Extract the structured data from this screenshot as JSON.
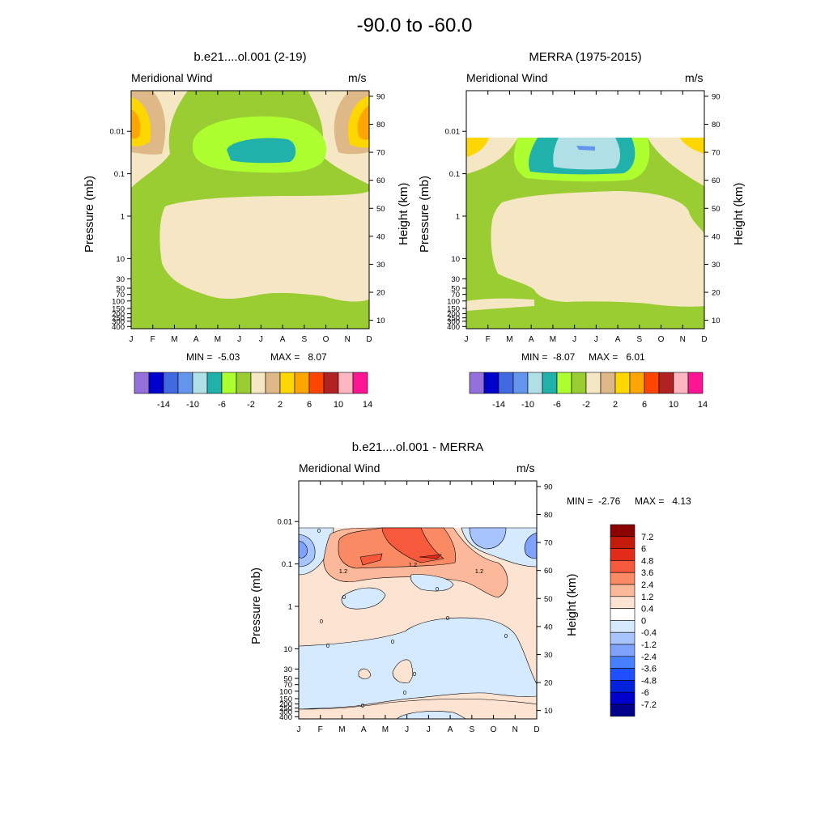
{
  "title": "-90.0 to -60.0",
  "months": [
    "J",
    "F",
    "M",
    "A",
    "M",
    "J",
    "J",
    "A",
    "S",
    "O",
    "N",
    "D"
  ],
  "pressure_ticks": [
    "0.01",
    "0.1",
    "1",
    "10",
    "30",
    "50",
    "70",
    "100",
    "150",
    "200",
    "250",
    "300",
    "400"
  ],
  "height_ticks": [
    "90",
    "80",
    "70",
    "60",
    "50",
    "40",
    "30",
    "20",
    "10"
  ],
  "colors": {
    "abs_levels": [
      "#9370db",
      "#0000cd",
      "#4169e1",
      "#6495ed",
      "#b0e0e6",
      "#20b2aa",
      "#adff2f",
      "#9acd32",
      "#f5e6c4",
      "#deb887",
      "#ffd700",
      "#ffa500",
      "#ff4500",
      "#b22222",
      "#ffb6c1",
      "#ff1493"
    ],
    "diff_levels": [
      "#00008b",
      "#0000cd",
      "#0022dd",
      "#1e50ff",
      "#4680ff",
      "#7fa2ff",
      "#a8c4ff",
      "#d6eaff",
      "#ffffff",
      "#fde3d2",
      "#fcb89a",
      "#fa8a64",
      "#f6593c",
      "#e32b19",
      "#c51b0a",
      "#8b0000"
    ]
  },
  "chart_data": [
    {
      "type": "heatmap",
      "title": "b.e21....ol.001 (2-19)",
      "left_label": "Meridional Wind",
      "right_label": "m/s",
      "xlabel": "",
      "ylabel": "Pressure (mb)",
      "ylabel_right": "Height (km)",
      "min_label": "MIN =  -5.03",
      "max_label": "MAX =   8.07",
      "min": -5.03,
      "max": 8.07,
      "colorbar_labels": [
        "-14",
        "-10",
        "-6",
        "-2",
        "2",
        "6",
        "10",
        "14"
      ]
    },
    {
      "type": "heatmap",
      "title": "MERRA (1975-2015)",
      "left_label": "Meridional Wind",
      "right_label": "m/s",
      "xlabel": "",
      "ylabel": "Pressure (mb)",
      "ylabel_right": "Height (km)",
      "min_label": "MIN =  -8.07",
      "max_label": "MAX =   6.01",
      "min": -8.07,
      "max": 6.01,
      "colorbar_labels": [
        "-14",
        "-10",
        "-6",
        "-2",
        "2",
        "6",
        "10",
        "14"
      ]
    },
    {
      "type": "heatmap",
      "title": "b.e21....ol.001 - MERRA",
      "left_label": "Meridional Wind",
      "right_label": "m/s",
      "xlabel": "",
      "ylabel": "Pressure (mb)",
      "ylabel_right": "Height (km)",
      "min_label": "MIN =  -2.76",
      "max_label": "MAX =   4.13",
      "min": -2.76,
      "max": 4.13,
      "colorbar_labels": [
        "7.2",
        "6",
        "4.8",
        "3.6",
        "2.4",
        "1.2",
        "0.4",
        "0",
        "-0.4",
        "-1.2",
        "-2.4",
        "-3.6",
        "-4.8",
        "-6",
        "-7.2"
      ],
      "contour_labels": [
        "0",
        "0",
        "0",
        "0",
        "0",
        "0",
        "0",
        "0",
        "0",
        "0",
        "0",
        "1.2",
        "1.2",
        "1.2"
      ]
    }
  ]
}
